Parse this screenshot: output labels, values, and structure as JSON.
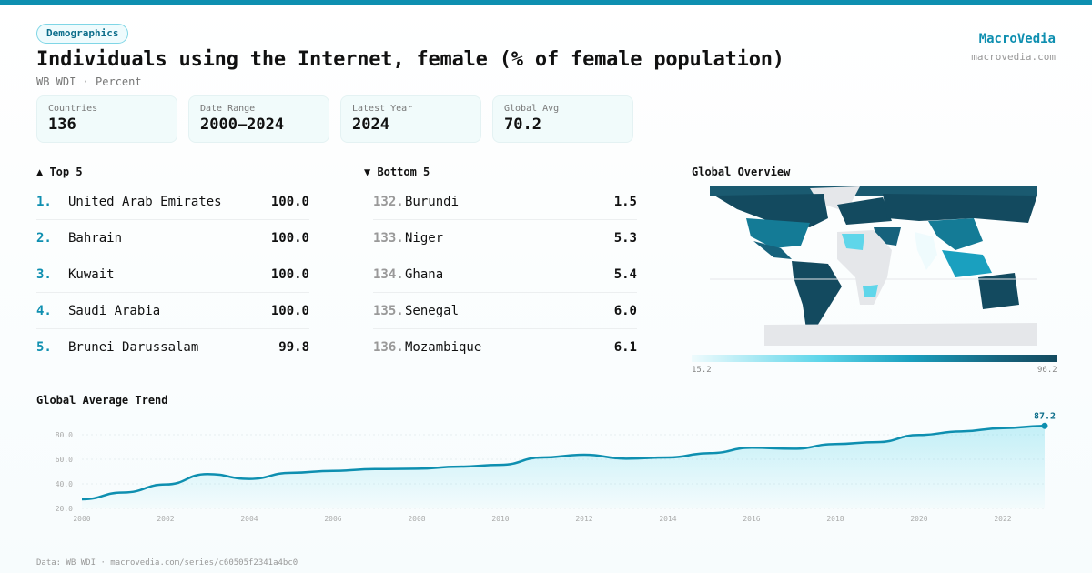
{
  "badge": "Demographics",
  "title": "Individuals using the Internet, female (% of female population)",
  "subtitle": "WB WDI · Percent",
  "brand": {
    "name": "MacroVedia",
    "url": "macrovedia.com"
  },
  "stats": [
    {
      "label": "Countries",
      "value": "136"
    },
    {
      "label": "Date Range",
      "value": "2000–2024"
    },
    {
      "label": "Latest Year",
      "value": "2024"
    },
    {
      "label": "Global Avg",
      "value": "70.2"
    }
  ],
  "top5": {
    "title": "▲ Top 5",
    "items": [
      {
        "rank": "1.",
        "name": "United Arab Emirates",
        "value": "100.0"
      },
      {
        "rank": "2.",
        "name": "Bahrain",
        "value": "100.0"
      },
      {
        "rank": "3.",
        "name": "Kuwait",
        "value": "100.0"
      },
      {
        "rank": "4.",
        "name": "Saudi Arabia",
        "value": "100.0"
      },
      {
        "rank": "5.",
        "name": "Brunei Darussalam",
        "value": "99.8"
      }
    ]
  },
  "bottom5": {
    "title": "▼ Bottom 5",
    "items": [
      {
        "rank": "132.",
        "name": "Burundi",
        "value": "1.5"
      },
      {
        "rank": "133.",
        "name": "Niger",
        "value": "5.3"
      },
      {
        "rank": "134.",
        "name": "Ghana",
        "value": "5.4"
      },
      {
        "rank": "135.",
        "name": "Senegal",
        "value": "6.0"
      },
      {
        "rank": "136.",
        "name": "Mozambique",
        "value": "6.1"
      }
    ]
  },
  "map": {
    "title": "Global Overview",
    "legend_min": "15.2",
    "legend_max": "96.2",
    "colors": [
      "#effbfd",
      "#5fd6ea",
      "#1aa0bf",
      "#16627c",
      "#134a5f"
    ],
    "no_data_color": "#e5e7ea"
  },
  "chart_data": {
    "type": "area",
    "title": "Global Average Trend",
    "x": [
      2000,
      2001,
      2002,
      2003,
      2004,
      2005,
      2006,
      2007,
      2008,
      2009,
      2010,
      2011,
      2012,
      2013,
      2014,
      2015,
      2016,
      2017,
      2018,
      2019,
      2020,
      2021,
      2022,
      2023
    ],
    "values": [
      27.4,
      33,
      39.5,
      48,
      44,
      49,
      50.6,
      52,
      52.3,
      54,
      55.5,
      61.5,
      63.7,
      60.5,
      61.5,
      65,
      69.4,
      68.6,
      72.4,
      74,
      79.8,
      82.7,
      85.4,
      87.2
    ],
    "yticks": [
      "20.0",
      "40.0",
      "60.0",
      "80.0"
    ],
    "xticks": [
      "2000",
      "2002",
      "2004",
      "2006",
      "2008",
      "2010",
      "2012",
      "2014",
      "2016",
      "2018",
      "2020",
      "2022"
    ],
    "ylim": [
      20,
      90
    ],
    "last_label": "87.2",
    "color": "#0e8fb0",
    "grid": true
  },
  "footer": "Data: WB WDI · macrovedia.com/series/c60505f2341a4bc0"
}
